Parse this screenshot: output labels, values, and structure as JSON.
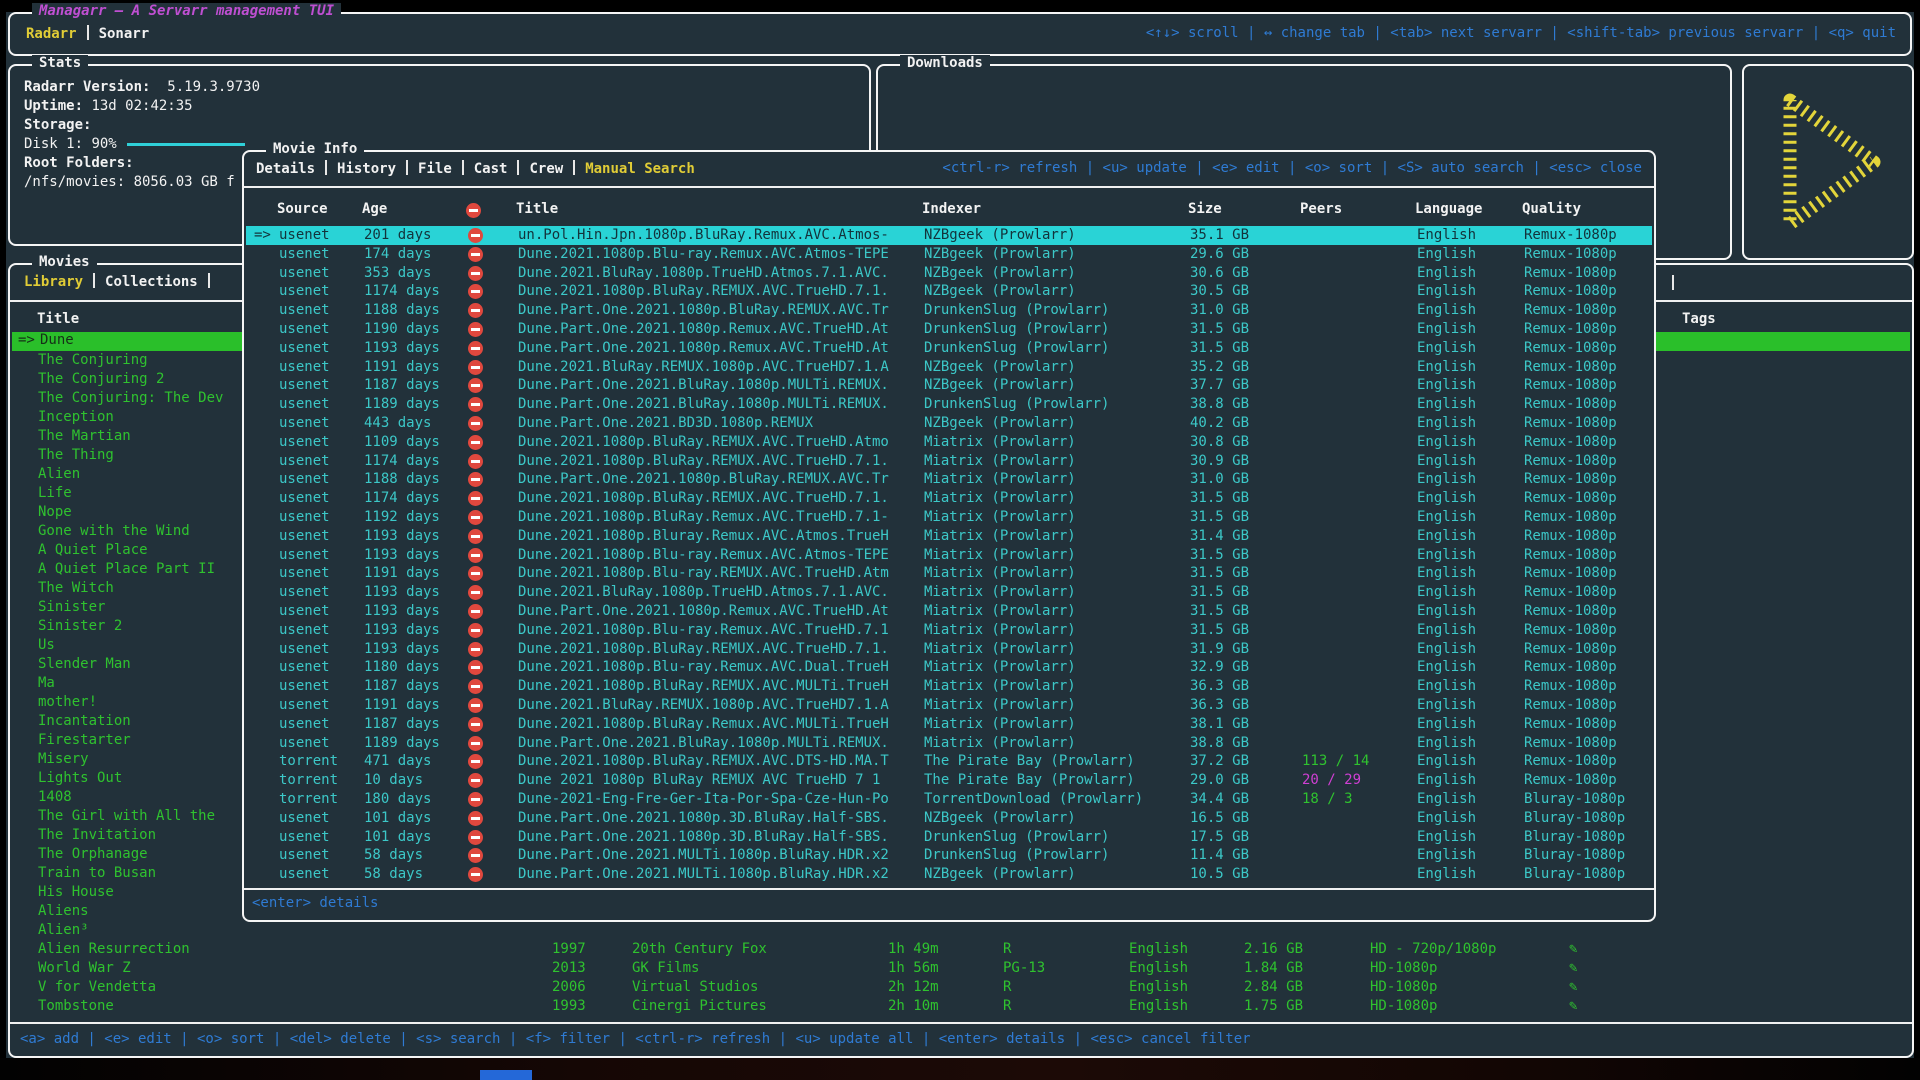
{
  "colors": {
    "magenta": "#bf4fd2",
    "yellow": "#e0cc36",
    "blue": "#2f7bd3",
    "cyan": "#3cc8c8",
    "selection_cyan": "#29d3d6",
    "green": "#2fc22f",
    "selection_green": "#2abf2a",
    "red": "#e0483e"
  },
  "app": {
    "title": "Managarr — A Servarr management TUI",
    "tabs": [
      {
        "label": "Radarr"
      },
      {
        "label": "Sonarr"
      }
    ],
    "active_tab": "Radarr",
    "top_hints": "<↑↓> scroll | ↔ change tab | <tab> next servarr | <shift-tab> previous servarr | <q> quit"
  },
  "stats": {
    "panel_title": "Stats",
    "version_label": "Radarr Version:",
    "version_value": "5.19.3.9730",
    "uptime_label": "Uptime:",
    "uptime_value": "13d 02:42:35",
    "storage_label": "Storage:",
    "disk_label": "Disk 1:",
    "disk_value": "90%",
    "root_label": "Root Folders:",
    "root_path": "/nfs/movies: 8056.03 GB f"
  },
  "downloads": {
    "panel_title": "Downloads"
  },
  "movies": {
    "panel_title": "Movies",
    "tabs": [
      {
        "label": "Library"
      },
      {
        "label": "Collections"
      }
    ],
    "active_tab": "Library",
    "title_header": "Title",
    "tags_header": "Tags",
    "selected_index": 0,
    "selected_marker": "=>",
    "titles": [
      "Dune",
      "The Conjuring",
      "The Conjuring 2",
      "The Conjuring: The Dev",
      "Inception",
      "The Martian",
      "The Thing",
      "Alien",
      "Life",
      "Nope",
      "Gone with the Wind",
      "A Quiet Place",
      "A Quiet Place Part II",
      "The Witch",
      "Sinister",
      "Sinister 2",
      "Us",
      "Slender Man",
      "Ma",
      "mother!",
      "Incantation",
      "Firestarter",
      "Misery",
      "Lights Out",
      "1408",
      "The Girl with All the",
      "The Invitation",
      "The Orphanage",
      "Train to Busan",
      "His House",
      "Aliens",
      "Alien³",
      "Alien Resurrection",
      "World War Z",
      "V for Vendetta",
      "Tombstone"
    ],
    "visible_detail_rows": [
      {
        "row_index": 32,
        "year": "1997",
        "studio": "20th Century Fox",
        "runtime": "1h 49m",
        "rating": "R",
        "language": "English",
        "size": "2.16 GB",
        "quality": "HD - 720p/1080p"
      },
      {
        "row_index": 33,
        "year": "2013",
        "studio": "GK Films",
        "runtime": "1h 56m",
        "rating": "PG-13",
        "language": "English",
        "size": "1.84 GB",
        "quality": "HD-1080p"
      },
      {
        "row_index": 34,
        "year": "2006",
        "studio": "Virtual Studios",
        "runtime": "2h 12m",
        "rating": "R",
        "language": "English",
        "size": "2.84 GB",
        "quality": "HD-1080p"
      },
      {
        "row_index": 35,
        "year": "1993",
        "studio": "Cinergi Pictures",
        "runtime": "2h 10m",
        "rating": "R",
        "language": "English",
        "size": "1.75 GB",
        "quality": "HD-1080p"
      }
    ],
    "bottom_bar": "<a> add | <e> edit | <o> sort | <del> delete | <s> search | <f> filter | <ctrl-r> refresh | <u> update all | <enter> details | <esc> cancel filter"
  },
  "modal": {
    "title": "Movie Info",
    "tabs": [
      {
        "label": "Details"
      },
      {
        "label": "History"
      },
      {
        "label": "File"
      },
      {
        "label": "Cast"
      },
      {
        "label": "Crew"
      },
      {
        "label": "Manual Search"
      }
    ],
    "active_tab": "Manual Search",
    "hints": "<ctrl-r> refresh | <u> update | <e> edit | <o> sort | <S> auto search | <esc> close",
    "footer_hint": "<enter> details",
    "columns": {
      "source": "Source",
      "age": "Age",
      "title": "Title",
      "indexer": "Indexer",
      "size": "Size",
      "peers": "Peers",
      "language": "Language",
      "quality": "Quality"
    },
    "selected_marker": "=>",
    "rows": [
      {
        "selected": true,
        "source": "usenet",
        "age": "201 days",
        "title": "un.Pol.Hin.Jpn.1080p.BluRay.Remux.AVC.Atmos-",
        "indexer": "NZBgeek (Prowlarr)",
        "size": "35.1 GB",
        "peers": "",
        "language": "English",
        "quality": "Remux-1080p"
      },
      {
        "source": "usenet",
        "age": "174 days",
        "title": "Dune.2021.1080p.Blu-ray.Remux.AVC.Atmos-TEPE",
        "indexer": "NZBgeek (Prowlarr)",
        "size": "29.6 GB",
        "peers": "",
        "language": "English",
        "quality": "Remux-1080p"
      },
      {
        "source": "usenet",
        "age": "353 days",
        "title": "Dune.2021.BluRay.1080p.TrueHD.Atmos.7.1.AVC.",
        "indexer": "NZBgeek (Prowlarr)",
        "size": "30.6 GB",
        "peers": "",
        "language": "English",
        "quality": "Remux-1080p"
      },
      {
        "source": "usenet",
        "age": "1174 days",
        "title": "Dune.2021.1080p.BluRay.REMUX.AVC.TrueHD.7.1.",
        "indexer": "NZBgeek (Prowlarr)",
        "size": "30.5 GB",
        "peers": "",
        "language": "English",
        "quality": "Remux-1080p"
      },
      {
        "source": "usenet",
        "age": "1188 days",
        "title": "Dune.Part.One.2021.1080p.BluRay.REMUX.AVC.Tr",
        "indexer": "DrunkenSlug (Prowlarr)",
        "size": "31.0 GB",
        "peers": "",
        "language": "English",
        "quality": "Remux-1080p"
      },
      {
        "source": "usenet",
        "age": "1190 days",
        "title": "Dune.Part.One.2021.1080p.Remux.AVC.TrueHD.At",
        "indexer": "DrunkenSlug (Prowlarr)",
        "size": "31.5 GB",
        "peers": "",
        "language": "English",
        "quality": "Remux-1080p"
      },
      {
        "source": "usenet",
        "age": "1193 days",
        "title": "Dune.Part.One.2021.1080p.Remux.AVC.TrueHD.At",
        "indexer": "DrunkenSlug (Prowlarr)",
        "size": "31.5 GB",
        "peers": "",
        "language": "English",
        "quality": "Remux-1080p"
      },
      {
        "source": "usenet",
        "age": "1191 days",
        "title": "Dune.2021.BluRay.REMUX.1080p.AVC.TrueHD7.1.A",
        "indexer": "NZBgeek (Prowlarr)",
        "size": "35.2 GB",
        "peers": "",
        "language": "English",
        "quality": "Remux-1080p"
      },
      {
        "source": "usenet",
        "age": "1187 days",
        "title": "Dune.Part.One.2021.BluRay.1080p.MULTi.REMUX.",
        "indexer": "NZBgeek (Prowlarr)",
        "size": "37.7 GB",
        "peers": "",
        "language": "English",
        "quality": "Remux-1080p"
      },
      {
        "source": "usenet",
        "age": "1189 days",
        "title": "Dune.Part.One.2021.BluRay.1080p.MULTi.REMUX.",
        "indexer": "DrunkenSlug (Prowlarr)",
        "size": "38.8 GB",
        "peers": "",
        "language": "English",
        "quality": "Remux-1080p"
      },
      {
        "source": "usenet",
        "age": "443 days",
        "title": "Dune.Part.One.2021.BD3D.1080p.REMUX",
        "indexer": "NZBgeek (Prowlarr)",
        "size": "40.2 GB",
        "peers": "",
        "language": "English",
        "quality": "Remux-1080p"
      },
      {
        "source": "usenet",
        "age": "1109 days",
        "title": "Dune.2021.1080p.BluRay.REMUX.AVC.TrueHD.Atmo",
        "indexer": "Miatrix (Prowlarr)",
        "size": "30.8 GB",
        "peers": "",
        "language": "English",
        "quality": "Remux-1080p"
      },
      {
        "source": "usenet",
        "age": "1174 days",
        "title": "Dune.2021.1080p.BluRay.REMUX.AVC.TrueHD.7.1.",
        "indexer": "Miatrix (Prowlarr)",
        "size": "30.9 GB",
        "peers": "",
        "language": "English",
        "quality": "Remux-1080p"
      },
      {
        "source": "usenet",
        "age": "1188 days",
        "title": "Dune.Part.One.2021.1080p.BluRay.REMUX.AVC.Tr",
        "indexer": "Miatrix (Prowlarr)",
        "size": "31.0 GB",
        "peers": "",
        "language": "English",
        "quality": "Remux-1080p"
      },
      {
        "source": "usenet",
        "age": "1174 days",
        "title": "Dune.2021.1080p.BluRay.REMUX.AVC.TrueHD.7.1.",
        "indexer": "Miatrix (Prowlarr)",
        "size": "31.5 GB",
        "peers": "",
        "language": "English",
        "quality": "Remux-1080p"
      },
      {
        "source": "usenet",
        "age": "1192 days",
        "title": "Dune.2021.1080p.BluRay.Remux.AVC.TrueHD.7.1-",
        "indexer": "Miatrix (Prowlarr)",
        "size": "31.5 GB",
        "peers": "",
        "language": "English",
        "quality": "Remux-1080p"
      },
      {
        "source": "usenet",
        "age": "1193 days",
        "title": "Dune.2021.1080p.Bluray.Remux.AVC.Atmos.TrueH",
        "indexer": "Miatrix (Prowlarr)",
        "size": "31.4 GB",
        "peers": "",
        "language": "English",
        "quality": "Remux-1080p"
      },
      {
        "source": "usenet",
        "age": "1193 days",
        "title": "Dune.2021.1080p.Blu-ray.Remux.AVC.Atmos-TEPE",
        "indexer": "Miatrix (Prowlarr)",
        "size": "31.5 GB",
        "peers": "",
        "language": "English",
        "quality": "Remux-1080p"
      },
      {
        "source": "usenet",
        "age": "1191 days",
        "title": "Dune.2021.1080p.Blu-ray.REMUX.AVC.TrueHD.Atm",
        "indexer": "Miatrix (Prowlarr)",
        "size": "31.5 GB",
        "peers": "",
        "language": "English",
        "quality": "Remux-1080p"
      },
      {
        "source": "usenet",
        "age": "1193 days",
        "title": "Dune.2021.BluRay.1080p.TrueHD.Atmos.7.1.AVC.",
        "indexer": "Miatrix (Prowlarr)",
        "size": "31.5 GB",
        "peers": "",
        "language": "English",
        "quality": "Remux-1080p"
      },
      {
        "source": "usenet",
        "age": "1193 days",
        "title": "Dune.Part.One.2021.1080p.Remux.AVC.TrueHD.At",
        "indexer": "Miatrix (Prowlarr)",
        "size": "31.5 GB",
        "peers": "",
        "language": "English",
        "quality": "Remux-1080p"
      },
      {
        "source": "usenet",
        "age": "1193 days",
        "title": "Dune.2021.1080p.Blu-ray.Remux.AVC.TrueHD.7.1",
        "indexer": "Miatrix (Prowlarr)",
        "size": "31.5 GB",
        "peers": "",
        "language": "English",
        "quality": "Remux-1080p"
      },
      {
        "source": "usenet",
        "age": "1193 days",
        "title": "Dune.2021.1080p.BluRay.REMUX.AVC.TrueHD.7.1.",
        "indexer": "Miatrix (Prowlarr)",
        "size": "31.9 GB",
        "peers": "",
        "language": "English",
        "quality": "Remux-1080p"
      },
      {
        "source": "usenet",
        "age": "1180 days",
        "title": "Dune.2021.1080p.Blu-ray.Remux.AVC.Dual.TrueH",
        "indexer": "Miatrix (Prowlarr)",
        "size": "32.9 GB",
        "peers": "",
        "language": "English",
        "quality": "Remux-1080p"
      },
      {
        "source": "usenet",
        "age": "1187 days",
        "title": "Dune.2021.1080p.BluRay.REMUX.AVC.MULTi.TrueH",
        "indexer": "Miatrix (Prowlarr)",
        "size": "36.3 GB",
        "peers": "",
        "language": "English",
        "quality": "Remux-1080p"
      },
      {
        "source": "usenet",
        "age": "1191 days",
        "title": "Dune.2021.BluRay.REMUX.1080p.AVC.TrueHD7.1.A",
        "indexer": "Miatrix (Prowlarr)",
        "size": "36.3 GB",
        "peers": "",
        "language": "English",
        "quality": "Remux-1080p"
      },
      {
        "source": "usenet",
        "age": "1187 days",
        "title": "Dune.2021.1080p.BluRay.Remux.AVC.MULTi.TrueH",
        "indexer": "Miatrix (Prowlarr)",
        "size": "38.1 GB",
        "peers": "",
        "language": "English",
        "quality": "Remux-1080p"
      },
      {
        "source": "usenet",
        "age": "1189 days",
        "title": "Dune.Part.One.2021.BluRay.1080p.MULTi.REMUX.",
        "indexer": "Miatrix (Prowlarr)",
        "size": "38.8 GB",
        "peers": "",
        "language": "English",
        "quality": "Remux-1080p"
      },
      {
        "source": "torrent",
        "age": "471 days",
        "title": "Dune.2021.1080p.BluRay.REMUX.AVC.DTS-HD.MA.T",
        "indexer": "The Pirate Bay (Prowlarr)",
        "size": "37.2 GB",
        "peers": "113 / 14",
        "peers_color": "#2fc22f",
        "language": "English",
        "quality": "Remux-1080p"
      },
      {
        "source": "torrent",
        "age": "10 days",
        "title": "Dune 2021 1080p BluRay REMUX AVC TrueHD 7 1",
        "indexer": "The Pirate Bay (Prowlarr)",
        "size": "29.0 GB",
        "peers": "20 / 29",
        "peers_color": "#cf3fd3",
        "language": "English",
        "quality": "Remux-1080p"
      },
      {
        "source": "torrent",
        "age": "180 days",
        "title": "Dune-2021-Eng-Fre-Ger-Ita-Por-Spa-Cze-Hun-Po",
        "indexer": "TorrentDownload (Prowlarr)",
        "size": "34.4 GB",
        "peers": "18 / 3",
        "peers_color": "#2fc22f",
        "language": "English",
        "quality": "Bluray-1080p"
      },
      {
        "source": "usenet",
        "age": "101 days",
        "title": "Dune.Part.One.2021.1080p.3D.BluRay.Half-SBS.",
        "indexer": "NZBgeek (Prowlarr)",
        "size": "16.5 GB",
        "peers": "",
        "language": "English",
        "quality": "Bluray-1080p"
      },
      {
        "source": "usenet",
        "age": "101 days",
        "title": "Dune.Part.One.2021.1080p.3D.BluRay.Half-SBS.",
        "indexer": "DrunkenSlug (Prowlarr)",
        "size": "17.5 GB",
        "peers": "",
        "language": "English",
        "quality": "Bluray-1080p"
      },
      {
        "source": "usenet",
        "age": "58 days",
        "title": "Dune.Part.One.2021.MULTi.1080p.BluRay.HDR.x2",
        "indexer": "DrunkenSlug (Prowlarr)",
        "size": "11.4 GB",
        "peers": "",
        "language": "English",
        "quality": "Bluray-1080p"
      },
      {
        "source": "usenet",
        "age": "58 days",
        "title": "Dune.Part.One.2021.MULTi.1080p.BluRay.HDR.x2",
        "indexer": "NZBgeek (Prowlarr)",
        "size": "10.5 GB",
        "peers": "",
        "language": "English",
        "quality": "Bluray-1080p"
      }
    ]
  }
}
